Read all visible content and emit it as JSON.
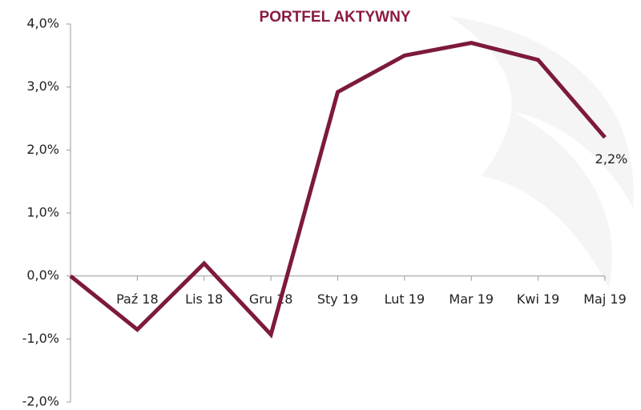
{
  "chart_data": {
    "type": "line",
    "title": "PORTFEL AKTYWNY",
    "categories": [
      null,
      "Paź 18",
      "Lis 18",
      "Gru 18",
      "Sty 19",
      "Lut 19",
      "Mar 19",
      "Kwi 19",
      "Maj 19"
    ],
    "series": [
      {
        "name": null,
        "color": "#7d1a3c",
        "values": [
          0,
          -0.85,
          0.2,
          -0.93,
          2.92,
          3.5,
          3.7,
          3.43,
          2.2
        ],
        "value_labels": [
          null,
          null,
          null,
          null,
          null,
          null,
          null,
          null,
          "2,2%"
        ]
      }
    ],
    "ylim": [
      -2,
      4
    ],
    "yticks": [
      {
        "value": -2,
        "label": "-2,0%"
      },
      {
        "value": -1,
        "label": "-1,0%"
      },
      {
        "value": 0,
        "label": "0,0%"
      },
      {
        "value": 1,
        "label": "1,0%"
      },
      {
        "value": 2,
        "label": "2,0%"
      },
      {
        "value": 3,
        "label": "3,0%"
      },
      {
        "value": 4,
        "label": "4,0%"
      }
    ],
    "grid": false
  }
}
